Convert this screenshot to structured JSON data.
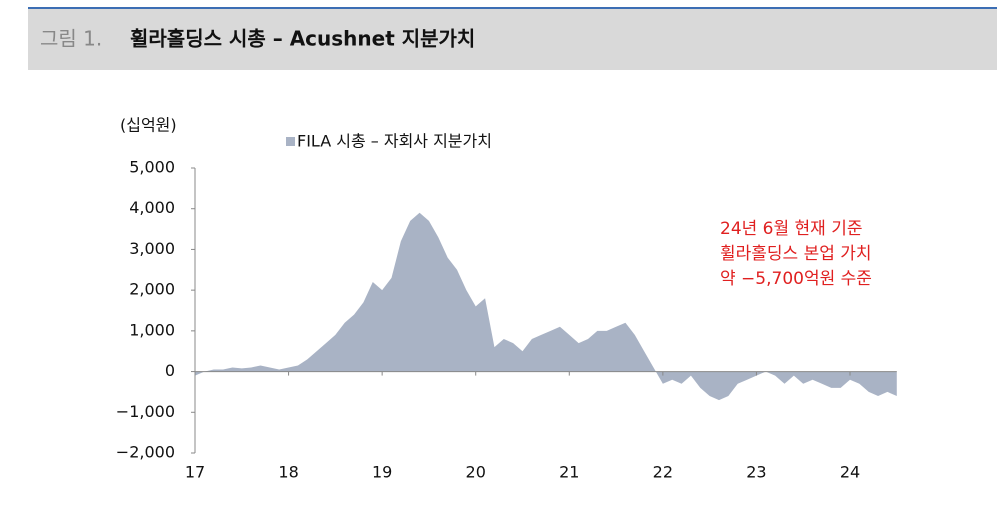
{
  "chart_data": {
    "type": "area",
    "figure_label": "그림 1.",
    "title": "휠라홀딩스 시총 – Acushnet 지분가치",
    "y_unit": "(십억원)",
    "annotation": [
      "24년 6월 현재 기준",
      "휠라홀딩스 본업 가치",
      "약  −5,700억원 수준"
    ],
    "series": [
      {
        "name": "FILA 시총 – 자회사 지분가치",
        "color": "#a9b3c5",
        "x": [
          17.0,
          17.1,
          17.2,
          17.3,
          17.4,
          17.5,
          17.6,
          17.7,
          17.8,
          17.9,
          18.0,
          18.1,
          18.2,
          18.3,
          18.4,
          18.5,
          18.6,
          18.7,
          18.8,
          18.9,
          19.0,
          19.1,
          19.2,
          19.3,
          19.4,
          19.5,
          19.6,
          19.7,
          19.8,
          19.9,
          20.0,
          20.1,
          20.2,
          20.3,
          20.4,
          20.5,
          20.6,
          20.7,
          20.8,
          20.9,
          21.0,
          21.1,
          21.2,
          21.3,
          21.4,
          21.5,
          21.6,
          21.7,
          21.8,
          21.9,
          22.0,
          22.1,
          22.2,
          22.3,
          22.4,
          22.5,
          22.6,
          22.7,
          22.8,
          22.9,
          23.0,
          23.1,
          23.2,
          23.3,
          23.4,
          23.5,
          23.6,
          23.7,
          23.8,
          23.9,
          24.0,
          24.1,
          24.2,
          24.3,
          24.4,
          24.5
        ],
        "values": [
          -100,
          0,
          50,
          50,
          100,
          80,
          100,
          150,
          100,
          50,
          100,
          150,
          300,
          500,
          700,
          900,
          1200,
          1400,
          1700,
          2200,
          2000,
          2300,
          3200,
          3700,
          3900,
          3700,
          3300,
          2800,
          2500,
          2000,
          1600,
          1800,
          600,
          800,
          700,
          500,
          800,
          900,
          1000,
          1100,
          900,
          700,
          800,
          1000,
          1000,
          1100,
          1200,
          900,
          500,
          100,
          -300,
          -200,
          -300,
          -100,
          -400,
          -600,
          -700,
          -600,
          -300,
          -200,
          -100,
          0,
          -100,
          -300,
          -100,
          -300,
          -200,
          -300,
          -400,
          -400,
          -200,
          -300,
          -500,
          -600,
          -500,
          -600
        ]
      }
    ],
    "xlim": [
      17,
      24.5
    ],
    "xticks": [
      17,
      18,
      19,
      20,
      21,
      22,
      23,
      24
    ],
    "ylim": [
      -2000,
      5000
    ],
    "yticks": [
      {
        "value": -2000,
        "label": "−2,000"
      },
      {
        "value": -1000,
        "label": "−1,000"
      },
      0,
      {
        "value": 1000,
        "label": "1,000"
      },
      {
        "value": 2000,
        "label": "2,000"
      },
      {
        "value": 3000,
        "label": "3,000"
      },
      {
        "value": 4000,
        "label": "4,000"
      },
      {
        "value": 5000,
        "label": "5,000"
      }
    ]
  }
}
